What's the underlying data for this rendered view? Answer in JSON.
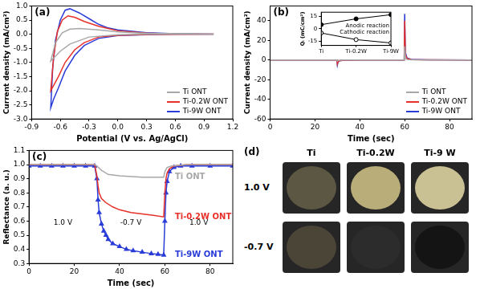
{
  "chart_data": [
    {
      "type": "line",
      "title": "(a)",
      "x_label": "Potential (V vs. Ag/AgCl)",
      "y_label": "Current density (mA/cm²)",
      "xlim": [
        -0.9,
        1.2
      ],
      "xticks": [
        -0.9,
        -0.6,
        -0.3,
        {
          "value": 0,
          "label": "0.0"
        },
        0.3,
        0.6,
        0.9,
        1.2
      ],
      "ylim": [
        -3.0,
        1.0
      ],
      "yticks": [
        {
          "value": -3,
          "label": "-3.0"
        },
        -2.5,
        {
          "value": -2,
          "label": "-2.0"
        },
        -1.5,
        {
          "value": -1,
          "label": "-1.0"
        },
        -0.5,
        {
          "value": 0,
          "label": "0.0"
        },
        0.5,
        {
          "value": 1,
          "label": "1.0"
        }
      ],
      "grid": false,
      "legend": "lower right",
      "series": [
        {
          "name": "Ti ONT",
          "color": "#a8a8a8",
          "x": [
            1.0,
            0.3,
            0,
            -0.3,
            -0.5,
            -0.6,
            -0.7,
            -0.65,
            -0.58,
            -0.5,
            -0.4,
            -0.2,
            0,
            0.3,
            1.0
          ],
          "values": [
            0,
            0,
            -0.02,
            -0.1,
            -0.35,
            -0.6,
            -0.95,
            -0.3,
            0.05,
            0.18,
            0.2,
            0.15,
            0.08,
            0.03,
            0
          ]
        },
        {
          "name": "Ti-0.2W ONT",
          "color": "#e8302a",
          "x": [
            1.0,
            0.3,
            0,
            -0.2,
            -0.35,
            -0.45,
            -0.55,
            -0.62,
            -0.7,
            -0.67,
            -0.63,
            -0.58,
            -0.52,
            -0.45,
            -0.35,
            -0.2,
            0,
            0.3,
            0.6,
            1.0
          ],
          "values": [
            0,
            -0.01,
            -0.04,
            -0.1,
            -0.3,
            -0.55,
            -1.0,
            -1.5,
            -2.0,
            -0.8,
            0.1,
            0.5,
            0.65,
            0.6,
            0.45,
            0.28,
            0.12,
            0.04,
            0.01,
            0
          ]
        },
        {
          "name": "Ti-9W ONT",
          "color": "#2a3cd8",
          "x": [
            1.0,
            0.6,
            0.3,
            0.0,
            -0.2,
            -0.35,
            -0.45,
            -0.55,
            -0.62,
            -0.67,
            -0.7,
            -0.68,
            -0.65,
            -0.6,
            -0.55,
            -0.5,
            -0.4,
            -0.3,
            -0.2,
            -0.1,
            0.0,
            0.3,
            0.6,
            1.0
          ],
          "values": [
            0,
            0,
            -0.02,
            -0.05,
            -0.15,
            -0.4,
            -0.75,
            -1.3,
            -1.9,
            -2.3,
            -2.6,
            -1.2,
            -0.2,
            0.5,
            0.85,
            0.9,
            0.75,
            0.55,
            0.35,
            0.22,
            0.15,
            0.05,
            0.02,
            0
          ]
        }
      ]
    },
    {
      "type": "line",
      "title": "(b)",
      "x_label": "Time (sec)",
      "y_label": "Current density (mA/cm²)",
      "xlim": [
        0,
        90
      ],
      "xticks": [
        0,
        20,
        40,
        60,
        80
      ],
      "ylim": [
        -60,
        55
      ],
      "yticks": [
        -60,
        -40,
        -20,
        0,
        20,
        40
      ],
      "grid": false,
      "legend": "lower right",
      "series": [
        {
          "name": "Ti ONT",
          "color": "#a8a8a8",
          "x": [
            0,
            29.8,
            30,
            30.3,
            31,
            33,
            40,
            59.8,
            60,
            60.3,
            61,
            63,
            70,
            90
          ],
          "values": [
            0,
            0,
            -1,
            -0.4,
            -0.2,
            -0.1,
            0,
            0,
            14,
            2,
            0.5,
            0.2,
            0,
            0
          ]
        },
        {
          "name": "Ti-0.2W ONT",
          "color": "#e8302a",
          "x": [
            0,
            29.8,
            30,
            30.3,
            31,
            33,
            40,
            59.8,
            60,
            60.3,
            61,
            63,
            70,
            90
          ],
          "values": [
            0,
            0,
            -4,
            -1.5,
            -0.6,
            -0.2,
            -0.1,
            0,
            40,
            6,
            1.5,
            0.4,
            0.1,
            0
          ]
        },
        {
          "name": "Ti-9W ONT",
          "color": "#2a3cd8",
          "x": [
            0,
            29.8,
            30,
            30.3,
            31,
            33,
            40,
            59.8,
            60,
            60.3,
            61,
            63,
            70,
            90
          ],
          "values": [
            0,
            0,
            -5,
            -2,
            -0.8,
            -0.3,
            -0.1,
            0,
            47,
            8,
            2,
            0.6,
            0.2,
            0
          ]
        }
      ],
      "inset": {
        "type": "line",
        "y_label": "Qᵢ (mC/cm²)",
        "categories": [
          "Ti",
          "Ti-0.2W",
          "Ti-9W"
        ],
        "ylim": [
          -20,
          20
        ],
        "yticks": [
          -15,
          0,
          15
        ],
        "grid": false,
        "legend": "direct",
        "series": [
          {
            "name": "Anodic reaction",
            "color": "#000000",
            "marker": "square",
            "values": [
              5,
              12,
              17
            ]
          },
          {
            "name": "Cathodic reaction",
            "color": "#000000",
            "marker": "open_circle",
            "values": [
              -5,
              -13,
              -17
            ]
          }
        ]
      }
    },
    {
      "type": "line",
      "title": "(c)",
      "x_label": "Time (sec)",
      "y_label": "Reflectance (a. u.)",
      "xlim": [
        0,
        90
      ],
      "xticks": [
        0,
        20,
        40,
        60,
        80
      ],
      "ylim": [
        0.3,
        1.1
      ],
      "yticks": [
        0.3,
        0.4,
        0.5,
        0.6,
        0.7,
        0.8,
        0.9,
        {
          "value": 1,
          "label": "1.0"
        },
        1.1
      ],
      "grid": false,
      "legend": "direct",
      "annotations": [
        "1.0 V",
        "-0.7 V",
        "1.0 V"
      ],
      "series": [
        {
          "name": "Ti ONT",
          "color": "#a8a8a8",
          "marker": "none",
          "x": [
            0,
            29,
            30,
            32,
            35,
            40,
            50,
            59.5,
            60,
            61,
            63,
            70,
            90
          ],
          "values": [
            1.0,
            1.0,
            0.99,
            0.96,
            0.93,
            0.92,
            0.91,
            0.91,
            0.95,
            0.98,
            0.99,
            1.0,
            1.0
          ]
        },
        {
          "name": "Ti-0.2W ONT",
          "color": "#e8302a",
          "marker": "none",
          "x": [
            0,
            29,
            30,
            30.5,
            31,
            32,
            34,
            37,
            40,
            45,
            50,
            55,
            59.5,
            60,
            60.5,
            61,
            62,
            64,
            70,
            90
          ],
          "values": [
            1.0,
            1.0,
            0.92,
            0.85,
            0.8,
            0.76,
            0.73,
            0.7,
            0.68,
            0.66,
            0.65,
            0.64,
            0.63,
            0.8,
            0.9,
            0.94,
            0.97,
            0.99,
            1.0,
            1.0
          ]
        },
        {
          "name": "Ti-9W ONT",
          "color": "#2a3cd8",
          "marker": "triangle",
          "x": [
            0,
            5,
            10,
            15,
            20,
            25,
            29,
            30,
            30.5,
            31,
            32,
            33,
            34,
            35,
            37,
            40,
            43,
            46,
            50,
            54,
            57,
            59.5,
            60,
            60.5,
            61,
            62,
            64,
            67,
            72,
            80,
            90
          ],
          "values": [
            0.99,
            0.99,
            0.99,
            0.99,
            0.99,
            0.99,
            0.99,
            0.9,
            0.75,
            0.66,
            0.58,
            0.53,
            0.5,
            0.47,
            0.44,
            0.42,
            0.4,
            0.39,
            0.38,
            0.37,
            0.365,
            0.36,
            0.6,
            0.8,
            0.88,
            0.95,
            0.98,
            0.99,
            0.99,
            0.99,
            0.99
          ]
        }
      ]
    }
  ],
  "photo_panel": {
    "title": "(d)",
    "columns": [
      "Ti",
      "Ti-0.2W",
      "Ti-9 W"
    ],
    "rows": [
      {
        "label": "1.0 V",
        "colors": [
          "#5c5742",
          "#b9ae7a",
          "#c9c193"
        ]
      },
      {
        "label": "-0.7 V",
        "colors": [
          "#4a4536",
          "#2c2c2c",
          "#141414"
        ]
      }
    ]
  }
}
